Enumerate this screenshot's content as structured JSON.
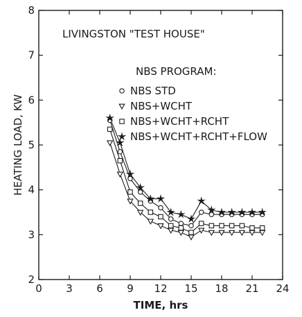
{
  "chart_data": {
    "type": "line",
    "title": "LIVINGSTON \"TEST HOUSE\"",
    "legend_title": "NBS PROGRAM:",
    "xlabel": "TIME, hrs",
    "ylabel": "HEATING LOAD, KW",
    "xlim": [
      0,
      24
    ],
    "ylim": [
      2,
      8
    ],
    "xticks": [
      0,
      3,
      6,
      9,
      12,
      15,
      18,
      21,
      24
    ],
    "yticks": [
      2,
      3,
      4,
      5,
      6,
      7,
      8
    ],
    "grid": false,
    "legend_position": "top-right",
    "x": [
      7,
      8,
      9,
      10,
      11,
      12,
      13,
      14,
      15,
      16,
      17,
      18,
      19,
      20,
      21,
      22
    ],
    "series": [
      {
        "name": "NBS STD",
        "marker": "circle",
        "values": [
          5.55,
          4.85,
          4.25,
          3.95,
          3.75,
          3.6,
          3.35,
          3.25,
          3.2,
          3.5,
          3.45,
          3.45,
          3.45,
          3.45,
          3.45,
          3.45
        ]
      },
      {
        "name": "NBS+WCHT",
        "marker": "triangle-down",
        "values": [
          5.05,
          4.35,
          3.75,
          3.5,
          3.3,
          3.2,
          3.1,
          3.05,
          2.95,
          3.1,
          3.05,
          3.05,
          3.05,
          3.05,
          3.05,
          3.05
        ]
      },
      {
        "name": "NBS+WCHT+RCHT",
        "marker": "square",
        "values": [
          5.35,
          4.65,
          3.95,
          3.7,
          3.5,
          3.4,
          3.2,
          3.15,
          3.05,
          3.25,
          3.2,
          3.2,
          3.2,
          3.2,
          3.15,
          3.15
        ]
      },
      {
        "name": "NBS+WCHT+RCHT+FLOW",
        "marker": "star",
        "values": [
          5.6,
          5.05,
          4.35,
          4.05,
          3.8,
          3.8,
          3.5,
          3.45,
          3.35,
          3.75,
          3.55,
          3.5,
          3.5,
          3.5,
          3.5,
          3.5
        ]
      }
    ]
  }
}
